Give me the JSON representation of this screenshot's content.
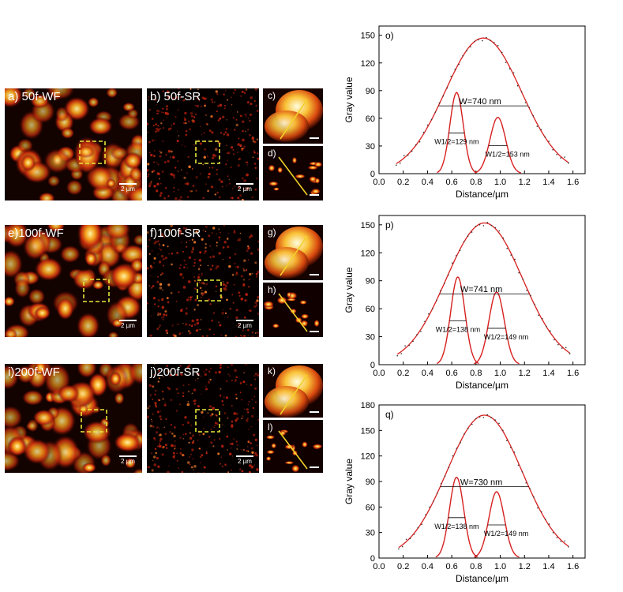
{
  "rows": [
    {
      "wf": {
        "label": "a) 50f-WF",
        "scale": "2 µm"
      },
      "sr": {
        "label": "b) 50f-SR",
        "scale": "2 µm"
      },
      "zoom_top": {
        "label": "c)"
      },
      "zoom_bottom": {
        "label": "d)"
      }
    },
    {
      "wf": {
        "label": "e)100f-WF",
        "scale": "2 µm"
      },
      "sr": {
        "label": "f)100f-SR",
        "scale": "2 µm"
      },
      "zoom_top": {
        "label": "g)"
      },
      "zoom_bottom": {
        "label": "h)"
      }
    },
    {
      "wf": {
        "label": "i)200f-WF",
        "scale": "2 µm"
      },
      "sr": {
        "label": "j)200f-SR",
        "scale": "2 µm"
      },
      "zoom_top": {
        "label": "k)"
      },
      "zoom_bottom": {
        "label": "l)"
      }
    }
  ],
  "colors": {
    "curve": "#d62020",
    "points": "#333333",
    "axis": "#000000",
    "roi": "#e8e83a",
    "line_profile": "#f2d12a"
  },
  "chart_data": [
    {
      "type": "line",
      "panel_label": "o)",
      "xlabel": "Distance/µm",
      "ylabel": "Gray value",
      "xlim": [
        0.0,
        1.7
      ],
      "ylim": [
        0,
        160
      ],
      "xticks": [
        "0.0",
        "0.2",
        "0.4",
        "0.6",
        "0.8",
        "1.0",
        "1.2",
        "1.4",
        "1.6"
      ],
      "yticks": [
        "0",
        "30",
        "60",
        "90",
        "120",
        "150"
      ],
      "wide": {
        "center": 0.86,
        "peak": 147,
        "fwhm": 0.74,
        "base": 0
      },
      "narrow": [
        {
          "center": 0.64,
          "peak": 88,
          "fwhm": 0.129
        },
        {
          "center": 0.98,
          "peak": 61,
          "fwhm": 0.153
        }
      ],
      "annotations": {
        "wide": "W=740 nm",
        "narrow_left": "W1/2=129 nm",
        "narrow_right": "W1/2=153 nm"
      }
    },
    {
      "type": "line",
      "panel_label": "p)",
      "xlabel": "Distance/µm",
      "ylabel": "Gray value",
      "xlim": [
        0.0,
        1.7
      ],
      "ylim": [
        0,
        160
      ],
      "xticks": [
        "0.0",
        "0.2",
        "0.4",
        "0.6",
        "0.8",
        "1.0",
        "1.2",
        "1.4",
        "1.6"
      ],
      "yticks": [
        "0",
        "30",
        "60",
        "90",
        "120",
        "150"
      ],
      "wide": {
        "center": 0.87,
        "peak": 152,
        "fwhm": 0.741,
        "base": 0
      },
      "narrow": [
        {
          "center": 0.65,
          "peak": 94,
          "fwhm": 0.138
        },
        {
          "center": 0.97,
          "peak": 78,
          "fwhm": 0.149
        }
      ],
      "annotations": {
        "wide": "W=741 nm",
        "narrow_left": "W1/2=138 nm",
        "narrow_right": "W1/2=149 nm"
      }
    },
    {
      "type": "line",
      "panel_label": "q)",
      "xlabel": "Distance/µm",
      "ylabel": "Gray value",
      "xlim": [
        0.0,
        1.7
      ],
      "ylim": [
        0,
        180
      ],
      "xticks": [
        "0.0",
        "0.2",
        "0.4",
        "0.6",
        "0.8",
        "1.0",
        "1.2",
        "1.4",
        "1.6"
      ],
      "yticks": [
        "0",
        "30",
        "60",
        "90",
        "120",
        "150",
        "180"
      ],
      "wide": {
        "center": 0.87,
        "peak": 168,
        "fwhm": 0.73,
        "base": 0
      },
      "narrow": [
        {
          "center": 0.64,
          "peak": 95,
          "fwhm": 0.138
        },
        {
          "center": 0.97,
          "peak": 78,
          "fwhm": 0.149
        }
      ],
      "annotations": {
        "wide": "W=730 nm",
        "narrow_left": "W1/2=138 nm",
        "narrow_right": "W1/2=149 nm"
      }
    }
  ]
}
